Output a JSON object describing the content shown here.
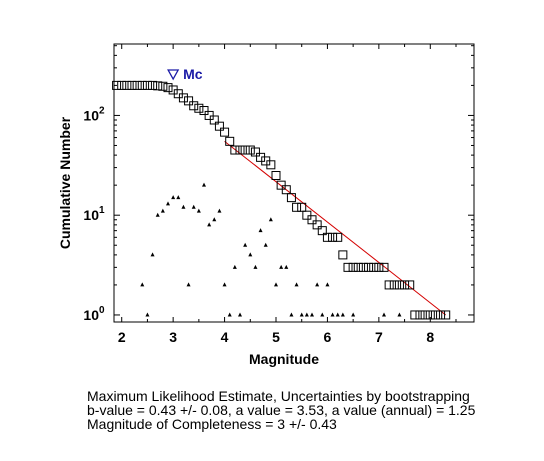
{
  "chart_data": {
    "type": "scatter",
    "xlabel": "Magnitude",
    "ylabel": "Cumulative Number",
    "xlim": [
      1.85,
      8.85
    ],
    "ylim": [
      0.85,
      520
    ],
    "yscale": "log",
    "grid": false,
    "x_ticks": [
      "2",
      "3",
      "4",
      "5",
      "6",
      "7",
      "8"
    ],
    "x_tick_values": [
      2,
      3,
      4,
      5,
      6,
      7,
      8
    ],
    "y_ticks": [
      {
        "value": 1,
        "base": "10",
        "exp": "0"
      },
      {
        "value": 10,
        "base": "10",
        "exp": "1"
      },
      {
        "value": 100,
        "base": "10",
        "exp": "2"
      }
    ],
    "mc": {
      "label": "Mc",
      "x": 3.0,
      "y": 260
    },
    "fit_line": {
      "x": [
        4.0,
        8.3
      ],
      "y": [
        55,
        1.0
      ],
      "color": "#d40000"
    },
    "series": [
      {
        "marker": "square",
        "x": [
          1.9,
          2.0,
          2.1,
          2.2,
          2.3,
          2.4,
          2.5,
          2.6,
          2.7,
          2.8,
          2.9,
          3.0,
          3.1,
          3.2,
          3.3,
          3.4,
          3.5,
          3.6,
          3.7,
          3.8,
          3.9,
          4.0,
          4.1,
          4.2,
          4.3,
          4.4,
          4.5,
          4.6,
          4.7,
          4.8,
          4.9,
          5.0,
          5.1,
          5.2,
          5.3,
          5.4,
          5.5,
          5.6,
          5.7,
          5.8,
          5.9,
          6.0,
          6.1,
          6.2,
          6.3,
          6.4,
          6.5,
          6.6,
          6.7,
          6.8,
          6.9,
          7.0,
          7.1,
          7.2,
          7.3,
          7.4,
          7.5,
          7.6,
          7.7,
          7.8,
          7.9,
          8.0,
          8.1,
          8.2,
          8.3
        ],
        "values": [
          200,
          200,
          200,
          200,
          200,
          200,
          200,
          200,
          198,
          196,
          190,
          180,
          165,
          150,
          140,
          125,
          118,
          112,
          100,
          90,
          78,
          68,
          55,
          45,
          45,
          45,
          45,
          43,
          38,
          35,
          32,
          25,
          20,
          18,
          15,
          12,
          12,
          10,
          9,
          8,
          7,
          6,
          6,
          6,
          4,
          3,
          3,
          3,
          3,
          3,
          3,
          3,
          3,
          2,
          2,
          2,
          2,
          2,
          1,
          1,
          1,
          1,
          1,
          1,
          1
        ]
      },
      {
        "marker": "triangle",
        "x": [
          2.4,
          2.5,
          2.6,
          2.7,
          2.8,
          2.9,
          3.0,
          3.1,
          3.2,
          3.3,
          3.4,
          3.5,
          3.6,
          3.7,
          3.8,
          3.9,
          4.0,
          4.1,
          4.2,
          4.3,
          4.4,
          4.5,
          4.6,
          4.7,
          4.8,
          4.9,
          5.0,
          5.1,
          5.2,
          5.3,
          5.4,
          5.5,
          5.6,
          5.7,
          5.8,
          5.9,
          6.0,
          6.1,
          6.2,
          6.3,
          6.5,
          7.1,
          7.4
        ],
        "values": [
          2,
          1,
          4,
          10,
          11,
          13,
          15,
          15,
          12,
          2,
          12,
          11,
          20,
          8,
          9,
          11,
          2,
          1,
          3,
          1,
          5,
          4,
          3,
          7,
          5,
          9,
          2,
          3,
          3,
          1,
          2,
          1,
          1,
          1,
          2,
          1,
          2,
          1,
          1,
          1,
          1,
          1,
          1
        ]
      }
    ]
  },
  "caption": {
    "line1": "Maximum Likelihood Estimate, Uncertainties by bootstrapping",
    "line2": "b-value = 0.43 +/- 0.08,  a value = 3.53,  a value (annual) = 1.25",
    "line3": "Magnitude of Completeness = 3 +/- 0.43"
  }
}
